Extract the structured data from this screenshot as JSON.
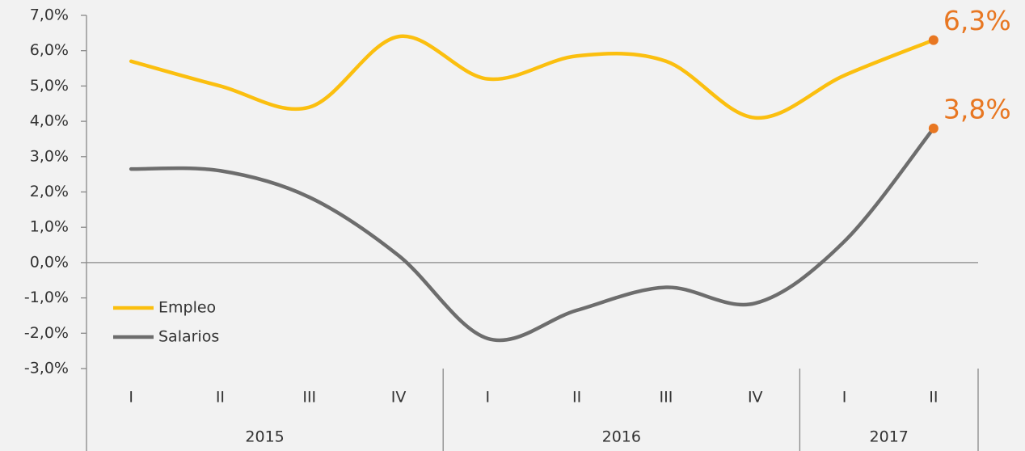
{
  "chart_data": {
    "type": "line",
    "groups": [
      {
        "name": "2015",
        "categories": [
          "I",
          "II",
          "III",
          "IV"
        ]
      },
      {
        "name": "2016",
        "categories": [
          "I",
          "II",
          "III",
          "IV"
        ]
      },
      {
        "name": "2017",
        "categories": [
          "I",
          "II"
        ]
      }
    ],
    "series": [
      {
        "name": "Empleo",
        "color": "#fbbf0f",
        "values": [
          5.7,
          5.0,
          4.4,
          6.4,
          5.2,
          5.85,
          5.7,
          4.1,
          5.3,
          6.3
        ],
        "value_labels": [
          null,
          null,
          null,
          null,
          null,
          null,
          null,
          null,
          null,
          "6,3%"
        ]
      },
      {
        "name": "Salarios",
        "color": "#6d6d6d",
        "values": [
          2.65,
          2.6,
          1.85,
          0.2,
          -2.15,
          -1.35,
          -0.7,
          -1.15,
          0.6,
          3.8
        ],
        "value_labels": [
          null,
          null,
          null,
          null,
          null,
          null,
          null,
          null,
          null,
          "3,8%"
        ]
      }
    ],
    "label_color": "#e87722",
    "ylim": [
      -3,
      7
    ],
    "yticks": [
      {
        "value": -3,
        "label": "-3,0%"
      },
      {
        "value": -2,
        "label": "-2,0%"
      },
      {
        "value": -1,
        "label": "-1,0%"
      },
      {
        "value": 0,
        "label": "0,0%"
      },
      {
        "value": 1,
        "label": "1,0%"
      },
      {
        "value": 2,
        "label": "2,0%"
      },
      {
        "value": 3,
        "label": "3,0%"
      },
      {
        "value": 4,
        "label": "4,0%"
      },
      {
        "value": 5,
        "label": "5,0%"
      },
      {
        "value": 6,
        "label": "6,0%"
      },
      {
        "value": 7,
        "label": "7,0%"
      }
    ],
    "legend": "lower left"
  }
}
